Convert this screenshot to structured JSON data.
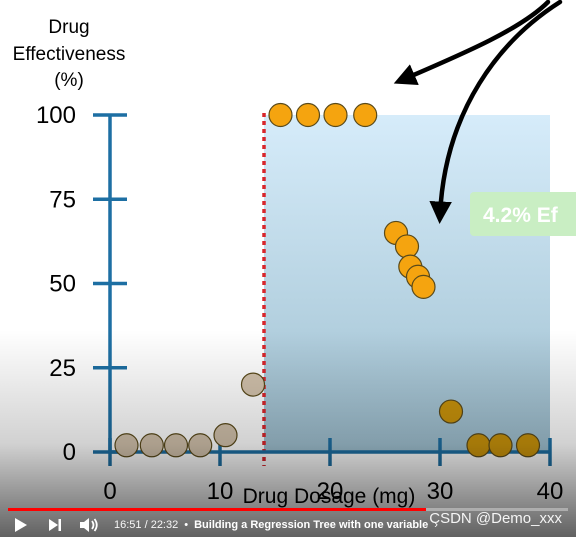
{
  "chart_data": {
    "type": "scatter",
    "title": "",
    "ylabel_lines": [
      "Drug",
      "Effectiveness",
      "(%)"
    ],
    "xlabel": "Drug Dosage (mg)",
    "xlim": [
      0,
      40
    ],
    "ylim": [
      0,
      100
    ],
    "x_ticks": [
      0,
      10,
      20,
      30,
      40
    ],
    "y_ticks": [
      0,
      25,
      50,
      75,
      100
    ],
    "split_threshold": 14,
    "highlight_region": {
      "x": [
        14,
        40
      ],
      "y": [
        0,
        100
      ]
    },
    "annotation_label": "4.2% Ef",
    "series": [
      {
        "name": "",
        "color": "#d2c2ac",
        "points": [
          [
            1.5,
            2
          ],
          [
            3.8,
            2
          ],
          [
            6,
            2
          ],
          [
            8.2,
            2
          ],
          [
            10.5,
            5
          ],
          [
            13,
            20
          ]
        ]
      },
      {
        "name": "",
        "color": "#f5a40f",
        "points": [
          [
            15.5,
            100
          ],
          [
            18,
            100
          ],
          [
            20.5,
            100
          ],
          [
            23.2,
            100
          ],
          [
            26,
            65
          ],
          [
            27,
            61
          ],
          [
            27.3,
            55
          ],
          [
            28,
            52
          ],
          [
            28.5,
            49
          ]
        ]
      },
      {
        "name": "",
        "color": "#c9930b",
        "points": [
          [
            31,
            12
          ],
          [
            33.5,
            2
          ],
          [
            35.5,
            2
          ],
          [
            38,
            2
          ]
        ]
      }
    ]
  },
  "player": {
    "time": "16:51 / 22:32",
    "separator": "•",
    "chapter": "Building a Regression Tree with one variable",
    "chevron": "›",
    "progress_fraction": 0.747
  },
  "watermark": "CSDN @Demo_xxx",
  "colors": {
    "axis": "#1d6fa3",
    "region_top": "#d6ecfa",
    "region_bottom": "#9ebfcf",
    "threshold_line": "#d8262c",
    "annotation_box": "#c9eec3",
    "arrow": "#000000"
  }
}
